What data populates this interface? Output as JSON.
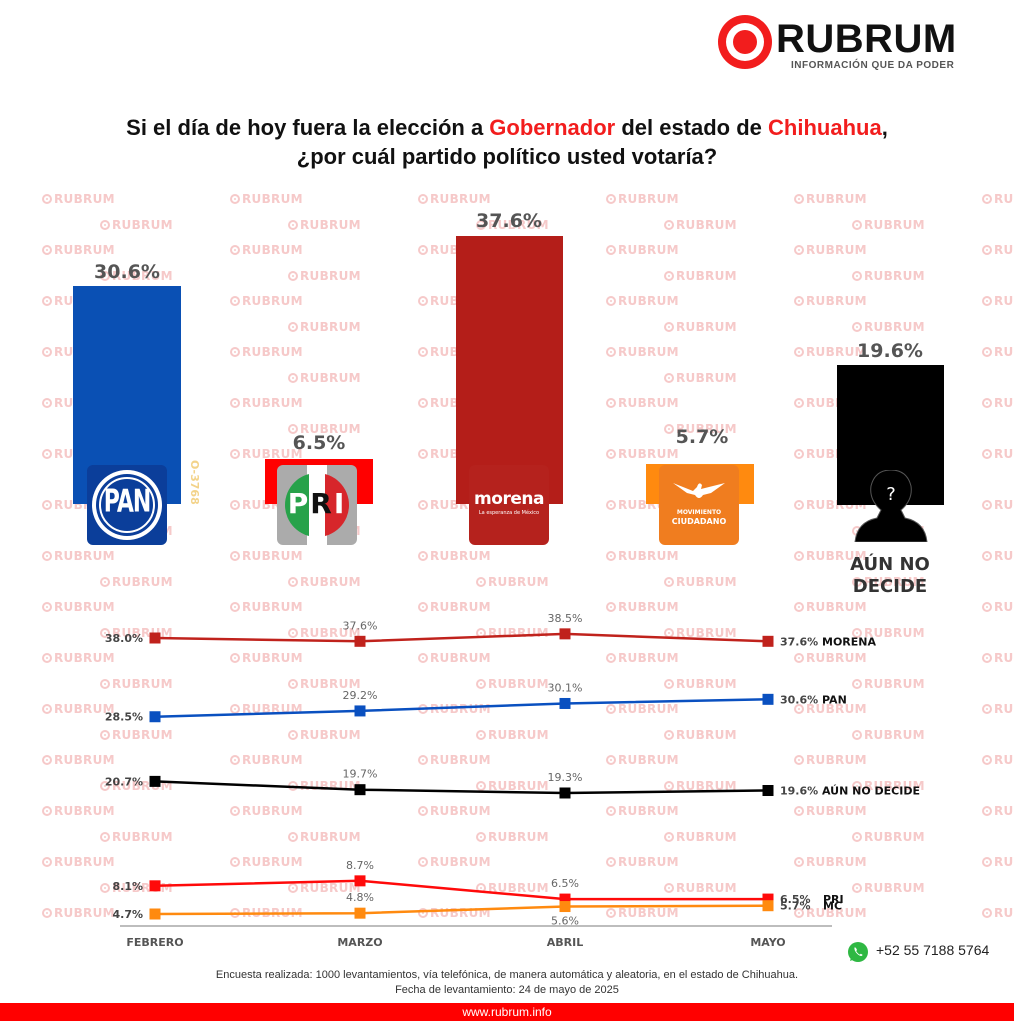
{
  "brand": {
    "name": "RUBRUM",
    "tagline": "INFORMACIÓN QUE DA PODER",
    "accent_color": "#f21d1d",
    "watermark_text": "RUBRUM"
  },
  "title": {
    "line1_part1": "Si el día de hoy fuera la elección a ",
    "line1_hl1": "Gobernador",
    "line1_part2": " del estado de  ",
    "line1_hl2": "Chihuahua",
    "line1_part3": ",",
    "line2": "¿por cuál partido político usted votaría?"
  },
  "bars": [
    {
      "party": "PAN",
      "value_label": "30.6%",
      "color": "#0a50b4",
      "logo_text": "PAN"
    },
    {
      "party": "PRI",
      "value_label": "6.5%",
      "color": "#ff0000",
      "logo_text": [
        "P",
        "R",
        "I"
      ]
    },
    {
      "party": "MORENA",
      "value_label": "37.6%",
      "color": "#b41e19",
      "logo_text": "morena",
      "logo_subtext": "La esperanza de México"
    },
    {
      "party": "MC",
      "value_label": "5.7%",
      "color": "#ff8a0f",
      "logo_text1": "MOVIMIENTO",
      "logo_text2": "CIUDADANO"
    },
    {
      "party": "AÚN NO DECIDE",
      "value_label": "19.6%",
      "color": "#000000",
      "label_line1": "AÚN NO",
      "label_line2": "DECIDE",
      "icon_glyph": "?"
    }
  ],
  "side_code": "O-3768",
  "trend": {
    "months": [
      "FEBRERO",
      "MARZO",
      "ABRIL",
      "MAYO"
    ],
    "series": [
      {
        "name": "MORENA",
        "color": "#c0221c",
        "values": [
          38.0,
          37.6,
          38.5,
          37.6
        ],
        "labels": [
          "38.0%",
          "37.6%",
          "38.5%",
          "37.6%"
        ]
      },
      {
        "name": "PAN",
        "color": "#0a50c0",
        "values": [
          28.5,
          29.2,
          30.1,
          30.6
        ],
        "labels": [
          "28.5%",
          "29.2%",
          "30.1%",
          "30.6%"
        ]
      },
      {
        "name": "AÚN NO DECIDE",
        "color": "#000000",
        "values": [
          20.7,
          19.7,
          19.3,
          19.6
        ],
        "labels": [
          "20.7%",
          "19.7%",
          "19.3%",
          "19.6%"
        ]
      },
      {
        "name": "PRI",
        "color": "#ff0a0a",
        "values": [
          8.1,
          8.7,
          6.5,
          6.5
        ],
        "labels": [
          "8.1%",
          "8.7%",
          "6.5%",
          "6.5%"
        ]
      },
      {
        "name": "MC",
        "color": "#ff8a0f",
        "values": [
          4.7,
          4.8,
          5.6,
          5.7
        ],
        "labels": [
          "4.7%",
          "4.8%",
          "5.6%",
          "5.7%"
        ]
      }
    ]
  },
  "chart_data": [
    {
      "type": "bar",
      "title": "Si el día de hoy fuera la elección a Gobernador del estado de Chihuahua, ¿por cuál partido político usted votaría?",
      "categories": [
        "PAN",
        "PRI",
        "MORENA",
        "MC",
        "AÚN NO DECIDE"
      ],
      "values": [
        30.6,
        6.5,
        37.6,
        5.7,
        19.6
      ],
      "colors": [
        "#0a50b4",
        "#ff0000",
        "#b41e19",
        "#ff8a0f",
        "#000000"
      ],
      "xlabel": "",
      "ylabel": "%",
      "ylim": [
        0,
        40
      ],
      "grid": false,
      "legend": "none"
    },
    {
      "type": "line",
      "title": "",
      "x": [
        "FEBRERO",
        "MARZO",
        "ABRIL",
        "MAYO"
      ],
      "series": [
        {
          "name": "MORENA",
          "values": [
            38.0,
            37.6,
            38.5,
            37.6
          ]
        },
        {
          "name": "PAN",
          "values": [
            28.5,
            29.2,
            30.1,
            30.6
          ]
        },
        {
          "name": "AÚN NO DECIDE",
          "values": [
            20.7,
            19.7,
            19.3,
            19.6
          ]
        },
        {
          "name": "PRI",
          "values": [
            8.1,
            8.7,
            6.5,
            6.5
          ]
        },
        {
          "name": "MC",
          "values": [
            4.7,
            4.8,
            5.6,
            5.7
          ]
        }
      ],
      "xlabel": "",
      "ylabel": "%",
      "grid": false,
      "legend": "inline-right"
    }
  ],
  "contact": {
    "phone": "+52 55 7188 5764",
    "icon": "whatsapp-icon"
  },
  "footnote": {
    "line1": "Encuesta realizada: 1000 levantamientos, vía telefónica, de manera automática y aleatoria, en el estado de Chihuahua.",
    "line2": "Fecha de levantamiento: 24 de mayo de 2025"
  },
  "footer": {
    "url": "www.rubrum.info"
  }
}
